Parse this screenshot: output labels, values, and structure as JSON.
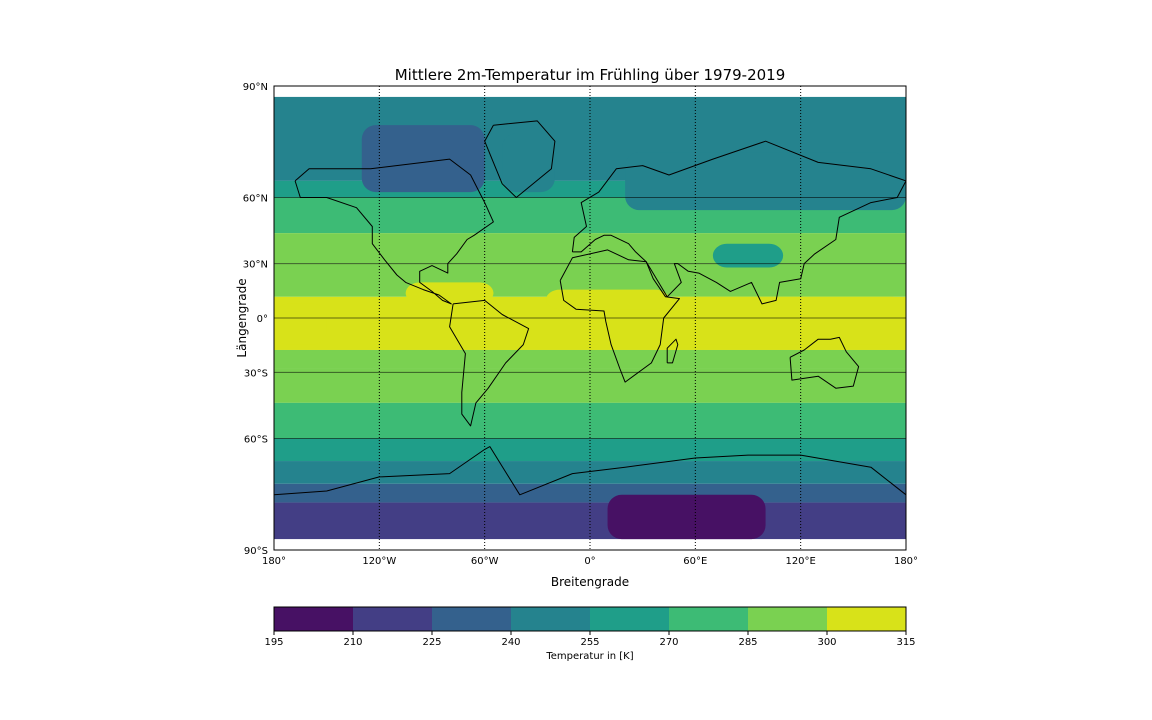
{
  "map": {
    "title": "Mittlere 2m-Temperatur im Frühling über 1979-2019",
    "xlabel": "Breitengrade",
    "ylabel": "Längengrade",
    "lon_ticks": [
      {
        "lon": -180,
        "label": "180°"
      },
      {
        "lon": -120,
        "label": "120°W"
      },
      {
        "lon": -60,
        "label": "60°W"
      },
      {
        "lon": 0,
        "label": "0°"
      },
      {
        "lon": 60,
        "label": "60°E"
      },
      {
        "lon": 120,
        "label": "120°E"
      },
      {
        "lon": 180,
        "label": "180°"
      }
    ],
    "lat_ticks": [
      {
        "lat": 90,
        "label": "90°N"
      },
      {
        "lat": 60,
        "label": "60°N"
      },
      {
        "lat": 30,
        "label": "30°N"
      },
      {
        "lat": 0,
        "label": "0°"
      },
      {
        "lat": -30,
        "label": "30°S"
      },
      {
        "lat": -60,
        "label": "60°S"
      },
      {
        "lat": -90,
        "label": "90°S"
      }
    ],
    "meridians_dotted": [
      -120,
      -60,
      0,
      60,
      120
    ],
    "parallels_solid": [
      60,
      30,
      0,
      -30,
      -60
    ],
    "extent": {
      "lon": [
        -180,
        180
      ],
      "lat": [
        -90,
        90
      ]
    }
  },
  "colorbar": {
    "label": "Temperatur in [K]",
    "levels": [
      195,
      210,
      225,
      240,
      255,
      270,
      285,
      300,
      315
    ],
    "colors": [
      "#471164",
      "#433e85",
      "#34618d",
      "#25838e",
      "#1f9e89",
      "#3dbb75",
      "#7ad151",
      "#d8e219"
    ]
  }
}
